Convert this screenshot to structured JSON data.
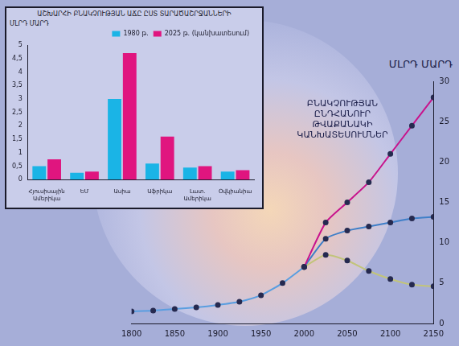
{
  "chart_data": [
    {
      "type": "bar",
      "title": "ԱՇԽԱՐՀԻ ԲՆԱԿՉՈՒԹՅԱՆ ԱՃԸ ԸՍՏ ՏԱՐԱԾԱՇՐՋԱՆՆԵՐԻ",
      "y_label": "ՄԼՐԴ ՄԱՐԴ",
      "categories": [
        "Հյուսիսային Ամերիկա",
        "ԵՄ",
        "Ասիա",
        "Աֆրիկա",
        "Լատ. Ամերիկա",
        "Օվկիանիա"
      ],
      "series": [
        {
          "name": "1980 թ.",
          "color": "#1ab4e6",
          "values": [
            0.5,
            0.25,
            3.0,
            0.6,
            0.45,
            0.3
          ]
        },
        {
          "name": "2025 թ. (կանխատեսում)",
          "color": "#e0157f",
          "values": [
            0.75,
            0.3,
            4.7,
            1.6,
            0.5,
            0.35
          ]
        }
      ],
      "ylim": [
        0,
        5
      ],
      "yticks": [
        0,
        {
          "value": 0.5,
          "label": "0,5"
        },
        1,
        {
          "value": 1.5,
          "label": "1,5"
        },
        2,
        {
          "value": 2.5,
          "label": "2,5"
        },
        3,
        {
          "value": 3.5,
          "label": "3,5"
        },
        4,
        {
          "value": 4.5,
          "label": "4,5"
        },
        5
      ],
      "legend": "upper-right",
      "grid": false
    },
    {
      "type": "line",
      "y_label": "ՄԼՐԴ ՄԱՐԴ",
      "annotation": "ԲՆԱԿՉՈՒԹՅԱՆ ԸՆԴՀԱՆՈՒՐ ԹՎԱՔԱՆԱԿԻ ԿԱՆԽԱՏԵՍՈՒՄՆԵՐ",
      "x": [
        1800,
        1825,
        1850,
        1875,
        1900,
        1925,
        1950,
        1975,
        2000,
        2025,
        2050,
        2075,
        2100,
        2125,
        2150
      ],
      "series": [
        {
          "color": "#5a9ee0",
          "marker": "circle",
          "values": [
            1.5,
            1.6,
            1.8,
            2.0,
            2.3,
            2.7,
            3.5,
            5.0,
            7.0,
            null,
            null,
            null,
            null,
            null,
            null
          ]
        },
        {
          "color": "#c8138c",
          "marker": "circle",
          "values": [
            null,
            null,
            null,
            null,
            null,
            null,
            null,
            null,
            7.0,
            12.5,
            15.0,
            17.5,
            21.0,
            24.5,
            28.0
          ]
        },
        {
          "color": "#3f7fc8",
          "marker": "circle",
          "values": [
            null,
            null,
            null,
            null,
            null,
            null,
            null,
            null,
            7.0,
            10.5,
            11.5,
            12.0,
            12.5,
            13.0,
            13.2
          ]
        },
        {
          "color": "#c2c47a",
          "marker": "circle",
          "values": [
            null,
            null,
            null,
            null,
            null,
            null,
            null,
            null,
            7.0,
            8.5,
            7.8,
            6.5,
            5.5,
            4.8,
            4.6
          ]
        }
      ],
      "xlim": [
        1800,
        2150
      ],
      "xticks": [
        1800,
        1850,
        1900,
        1950,
        2000,
        2050,
        2100,
        2150
      ],
      "ylim": [
        0,
        30
      ],
      "yticks": [
        0,
        5,
        10,
        15,
        20,
        25,
        30
      ],
      "grid": false
    }
  ]
}
